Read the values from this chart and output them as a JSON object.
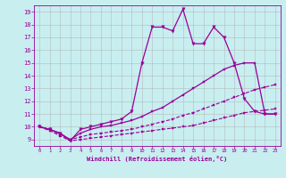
{
  "xlabel": "Windchill (Refroidissement éolien,°C)",
  "bg_color": "#c8eef0",
  "line_color": "#990099",
  "grid_color": "#b0b0b0",
  "xlim": [
    -0.5,
    23.5
  ],
  "ylim": [
    8.5,
    19.5
  ],
  "xticks": [
    0,
    1,
    2,
    3,
    4,
    5,
    6,
    7,
    8,
    9,
    10,
    11,
    12,
    13,
    14,
    15,
    16,
    17,
    18,
    19,
    20,
    21,
    22,
    23
  ],
  "yticks": [
    9,
    10,
    11,
    12,
    13,
    14,
    15,
    16,
    17,
    18,
    19
  ],
  "line_spike_x": [
    0,
    1,
    2,
    3,
    4,
    5,
    6,
    7,
    8,
    9,
    10,
    11,
    12,
    13,
    14,
    15,
    16,
    17,
    18,
    19,
    20,
    21,
    22,
    23
  ],
  "line_spike_y": [
    10.0,
    9.8,
    9.5,
    8.9,
    9.8,
    10.0,
    10.2,
    10.4,
    10.6,
    11.2,
    15.0,
    17.8,
    17.8,
    17.5,
    19.2,
    16.5,
    16.5,
    17.8,
    17.0,
    15.0,
    12.2,
    11.2,
    11.0,
    11.0
  ],
  "line_top_x": [
    0,
    1,
    2,
    3,
    4,
    5,
    6,
    7,
    8,
    9,
    10,
    11,
    12,
    13,
    14,
    15,
    16,
    17,
    18,
    19,
    20,
    21,
    22,
    23
  ],
  "line_top_y": [
    10.0,
    9.8,
    9.5,
    9.0,
    9.5,
    9.8,
    10.0,
    10.1,
    10.3,
    10.5,
    10.8,
    11.2,
    11.5,
    12.0,
    12.5,
    13.0,
    13.5,
    14.0,
    14.5,
    14.8,
    15.0,
    15.0,
    11.0,
    11.0
  ],
  "line_mid_x": [
    0,
    1,
    2,
    3,
    4,
    5,
    6,
    7,
    8,
    9,
    10,
    11,
    12,
    13,
    14,
    15,
    16,
    17,
    18,
    19,
    20,
    21,
    22,
    23
  ],
  "line_mid_y": [
    10.0,
    9.8,
    9.4,
    9.0,
    9.2,
    9.4,
    9.5,
    9.6,
    9.7,
    9.8,
    10.0,
    10.2,
    10.4,
    10.6,
    10.9,
    11.1,
    11.4,
    11.7,
    12.0,
    12.3,
    12.6,
    12.9,
    13.1,
    13.3
  ],
  "line_bot_x": [
    0,
    1,
    2,
    3,
    4,
    5,
    6,
    7,
    8,
    9,
    10,
    11,
    12,
    13,
    14,
    15,
    16,
    17,
    18,
    19,
    20,
    21,
    22,
    23
  ],
  "line_bot_y": [
    10.0,
    9.7,
    9.3,
    8.9,
    9.0,
    9.1,
    9.2,
    9.3,
    9.4,
    9.5,
    9.6,
    9.7,
    9.8,
    9.9,
    10.0,
    10.1,
    10.3,
    10.5,
    10.7,
    10.9,
    11.1,
    11.2,
    11.3,
    11.4
  ]
}
